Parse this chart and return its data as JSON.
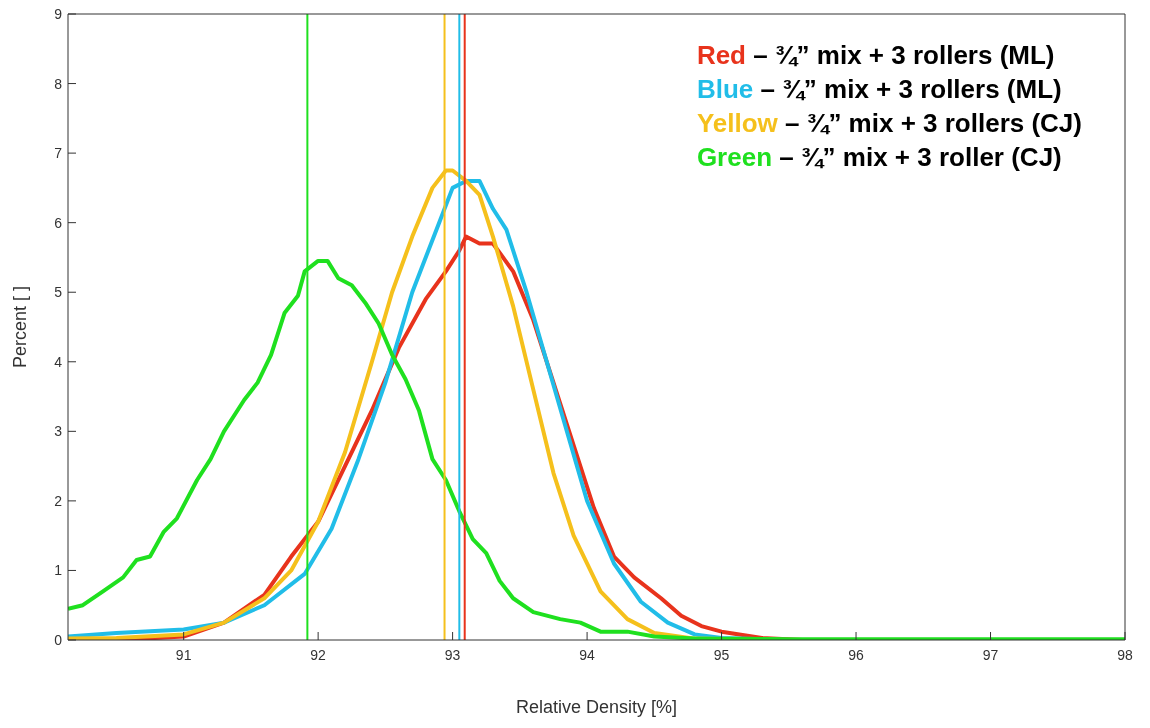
{
  "chart_data": {
    "type": "line",
    "xlabel": "Relative Density [%]",
    "ylabel": "Percent [ ]",
    "xlim": [
      90.14,
      98
    ],
    "xticks": [
      91,
      92,
      93,
      94,
      95,
      96,
      97,
      98
    ],
    "ylim": [
      0,
      9
    ],
    "yticks": [
      0,
      1,
      2,
      3,
      4,
      5,
      6,
      7,
      8,
      9
    ],
    "legend": "top right",
    "marker": "none",
    "line_style": "solid",
    "series": [
      {
        "name": "Red – ¾” mix + 3 rollers (ML)",
        "color": "#e8331c",
        "x": [
          90.14,
          90.5,
          91.0,
          91.3,
          91.6,
          91.8,
          92.0,
          92.2,
          92.4,
          92.6,
          92.8,
          92.95,
          93.05,
          93.1,
          93.2,
          93.3,
          93.45,
          93.6,
          93.75,
          93.9,
          94.05,
          94.2,
          94.35,
          94.55,
          94.7,
          94.85,
          95.0,
          95.3,
          95.6,
          98
        ],
        "values": [
          0.0,
          0.0,
          0.05,
          0.25,
          0.65,
          1.2,
          1.7,
          2.5,
          3.3,
          4.2,
          4.9,
          5.3,
          5.6,
          5.8,
          5.7,
          5.7,
          5.3,
          4.6,
          3.7,
          2.8,
          1.9,
          1.2,
          0.9,
          0.6,
          0.35,
          0.2,
          0.12,
          0.03,
          0,
          0
        ]
      },
      {
        "name": "Blue – ¾” mix + 3 rollers (ML)",
        "color": "#21bde8",
        "x": [
          90.14,
          90.5,
          91.0,
          91.3,
          91.6,
          91.9,
          92.1,
          92.3,
          92.5,
          92.7,
          92.9,
          93.0,
          93.1,
          93.2,
          93.3,
          93.4,
          93.55,
          93.7,
          93.85,
          94.0,
          94.2,
          94.4,
          94.6,
          94.8,
          95.0,
          95.5,
          98
        ],
        "values": [
          0.05,
          0.1,
          0.15,
          0.25,
          0.5,
          0.95,
          1.6,
          2.6,
          3.7,
          5.0,
          6.0,
          6.5,
          6.6,
          6.6,
          6.2,
          5.9,
          5.0,
          4.0,
          3.0,
          2.0,
          1.1,
          0.55,
          0.25,
          0.08,
          0.03,
          0,
          0
        ]
      },
      {
        "name": "Yellow – ¾” mix + 3 rollers (CJ)",
        "color": "#f5c01c",
        "x": [
          90.14,
          90.5,
          91.0,
          91.3,
          91.6,
          91.8,
          92.0,
          92.2,
          92.4,
          92.55,
          92.7,
          92.85,
          92.95,
          93.0,
          93.1,
          93.2,
          93.3,
          93.45,
          93.6,
          93.75,
          93.9,
          94.1,
          94.3,
          94.5,
          94.8,
          95.5,
          98
        ],
        "values": [
          0.02,
          0.03,
          0.08,
          0.25,
          0.6,
          1.0,
          1.7,
          2.7,
          4.0,
          5.0,
          5.8,
          6.5,
          6.75,
          6.75,
          6.6,
          6.4,
          5.8,
          4.8,
          3.6,
          2.4,
          1.5,
          0.7,
          0.3,
          0.1,
          0.02,
          0,
          0
        ]
      },
      {
        "name": "Green – ¾” mix + 3 roller (CJ)",
        "color": "#1fe01f",
        "x": [
          90.14,
          90.25,
          90.4,
          90.55,
          90.65,
          90.75,
          90.85,
          90.95,
          91.1,
          91.2,
          91.3,
          91.45,
          91.55,
          91.65,
          91.75,
          91.85,
          91.9,
          92.0,
          92.07,
          92.15,
          92.25,
          92.35,
          92.45,
          92.55,
          92.65,
          92.75,
          92.85,
          92.95,
          93.05,
          93.15,
          93.25,
          93.35,
          93.45,
          93.6,
          93.8,
          93.95,
          94.1,
          94.3,
          94.5,
          94.8,
          95.5,
          98
        ],
        "values": [
          0.45,
          0.5,
          0.7,
          0.9,
          1.15,
          1.2,
          1.55,
          1.75,
          2.3,
          2.6,
          3.0,
          3.45,
          3.7,
          4.1,
          4.7,
          4.95,
          5.3,
          5.45,
          5.45,
          5.2,
          5.1,
          4.85,
          4.55,
          4.1,
          3.75,
          3.3,
          2.6,
          2.3,
          1.85,
          1.45,
          1.25,
          0.85,
          0.6,
          0.4,
          0.3,
          0.25,
          0.12,
          0.12,
          0.05,
          0.02,
          0.01,
          0.01
        ]
      }
    ],
    "ref_lines": [
      {
        "axis": "x",
        "value": 91.92,
        "color": "#1fe01f"
      },
      {
        "axis": "x",
        "value": 92.94,
        "color": "#f5c01c"
      },
      {
        "axis": "x",
        "value": 93.05,
        "color": "#21bde8"
      },
      {
        "axis": "x",
        "value": 93.09,
        "color": "#e8331c"
      }
    ]
  }
}
